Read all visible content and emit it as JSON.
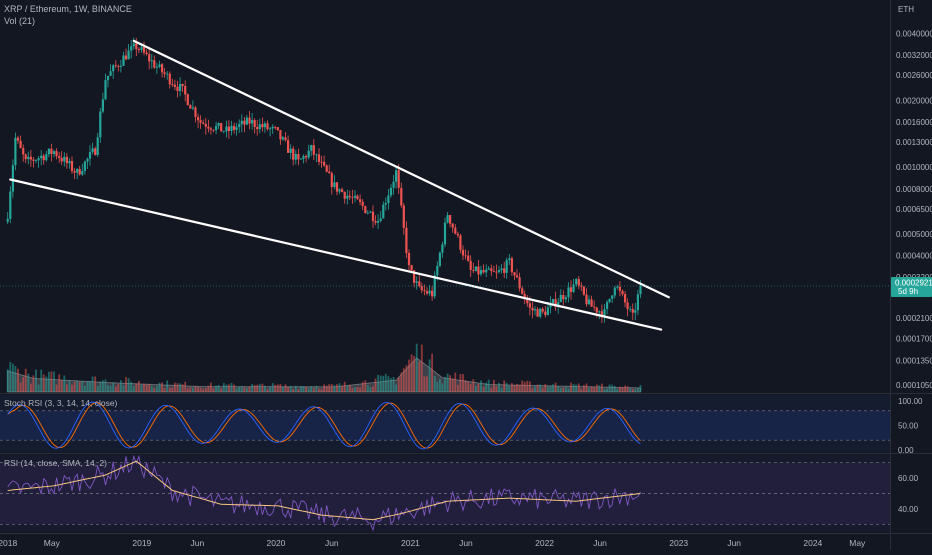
{
  "header": {
    "title": "XRP / Ethereum, 1W, BINANCE",
    "volume_label": "Vol (21)",
    "currency": "ETH"
  },
  "price_axis": {
    "ticks": [
      "0.0040000",
      "0.0032000",
      "0.0026000",
      "0.0020000",
      "0.0016000",
      "0.0013000",
      "0.0010000",
      "0.0008000",
      "0.0006500",
      "0.0005000",
      "0.0004000",
      "0.0003200",
      "0.0002100",
      "0.0001700",
      "0.0001350",
      "0.0001050"
    ],
    "current_price": "0.0002921",
    "countdown": "5d 9h"
  },
  "time_axis": {
    "ticks": [
      "2018",
      "May",
      "2019",
      "Jun",
      "2020",
      "Jun",
      "2021",
      "Jun",
      "2022",
      "Jun",
      "2023",
      "Jun",
      "2024",
      "May"
    ]
  },
  "stoch_rsi": {
    "label": "Stoch RSI (3, 3, 14, 14, close)",
    "ticks": [
      "100.00",
      "50.00",
      "0.00"
    ]
  },
  "rsi": {
    "label": "RSI (14, close, SMA, 14, 2)",
    "ticks": [
      "60.00",
      "40.00"
    ]
  },
  "colors": {
    "background": "#131722",
    "up": "#26a69a",
    "down": "#ef5350",
    "trendline": "#ffffff",
    "stoch_k": "#2962ff",
    "stoch_d": "#ff6d00",
    "rsi_line": "#7e57c2",
    "rsi_ma": "#f7c680",
    "price_label": "#26a69a"
  },
  "chart_data": {
    "type": "candlestick",
    "title": "XRP / Ethereum, 1W, BINANCE",
    "y_scale": "log",
    "ylim": [
      9.75e-05,
      0.0052
    ],
    "xlim": [
      "2017-12-11",
      "2024-07-29"
    ],
    "x_ticks": [
      "2018",
      "May",
      "2019",
      "Jun",
      "2020",
      "Jun",
      "2021",
      "Jun",
      "2022",
      "Jun",
      "2023",
      "Jun",
      "2024",
      "May"
    ],
    "grid": false,
    "current_price": 0.0002921,
    "trendlines": [
      {
        "name": "upper",
        "from": {
          "x": "2018-12-10",
          "y": 0.0037
        },
        "to": {
          "x": "2022-12-05",
          "y": 0.00026
        }
      },
      {
        "name": "lower",
        "from": {
          "x": "2018-01-08",
          "y": 0.00088
        },
        "to": {
          "x": "2022-11-14",
          "y": 0.000186
        }
      }
    ],
    "price_anchors": [
      {
        "x": "2018-01-01",
        "y": 0.00062
      },
      {
        "x": "2018-01-22",
        "y": 0.00135
      },
      {
        "x": "2018-02-19",
        "y": 0.00105
      },
      {
        "x": "2018-05-07",
        "y": 0.00118
      },
      {
        "x": "2018-07-09",
        "y": 0.00094
      },
      {
        "x": "2018-08-27",
        "y": 0.0012
      },
      {
        "x": "2018-09-24",
        "y": 0.0025
      },
      {
        "x": "2018-11-19",
        "y": 0.0032
      },
      {
        "x": "2018-12-17",
        "y": 0.0035
      },
      {
        "x": "2019-02-04",
        "y": 0.0029
      },
      {
        "x": "2019-04-22",
        "y": 0.0022
      },
      {
        "x": "2019-06-10",
        "y": 0.0016
      },
      {
        "x": "2019-08-19",
        "y": 0.00145
      },
      {
        "x": "2019-10-21",
        "y": 0.0016
      },
      {
        "x": "2019-12-30",
        "y": 0.00145
      },
      {
        "x": "2020-03-02",
        "y": 0.00105
      },
      {
        "x": "2020-04-06",
        "y": 0.0012
      },
      {
        "x": "2020-06-08",
        "y": 0.00082
      },
      {
        "x": "2020-08-17",
        "y": 0.00068
      },
      {
        "x": "2020-10-05",
        "y": 0.00058
      },
      {
        "x": "2020-11-23",
        "y": 0.00095
      },
      {
        "x": "2020-12-28",
        "y": 0.00035
      },
      {
        "x": "2021-01-25",
        "y": 0.00028
      },
      {
        "x": "2021-03-01",
        "y": 0.00027
      },
      {
        "x": "2021-04-12",
        "y": 0.00062
      },
      {
        "x": "2021-06-14",
        "y": 0.00034
      },
      {
        "x": "2021-08-23",
        "y": 0.00033
      },
      {
        "x": "2021-09-27",
        "y": 0.00037
      },
      {
        "x": "2021-11-22",
        "y": 0.00023
      },
      {
        "x": "2021-12-27",
        "y": 0.00022
      },
      {
        "x": "2022-02-14",
        "y": 0.00026
      },
      {
        "x": "2022-03-28",
        "y": 0.0003
      },
      {
        "x": "2022-05-02",
        "y": 0.00024
      },
      {
        "x": "2022-06-13",
        "y": 0.00022
      },
      {
        "x": "2022-07-11",
        "y": 0.0003
      },
      {
        "x": "2022-08-29",
        "y": 0.00021
      },
      {
        "x": "2022-09-19",
        "y": 0.0002921
      }
    ],
    "volume_envelope": [
      {
        "x": "2018-01-01",
        "v": 0.62
      },
      {
        "x": "2018-03-12",
        "v": 0.4
      },
      {
        "x": "2018-09-24",
        "v": 0.28
      },
      {
        "x": "2019-06-10",
        "v": 0.16
      },
      {
        "x": "2020-06-08",
        "v": 0.15
      },
      {
        "x": "2020-11-23",
        "v": 0.35
      },
      {
        "x": "2021-01-18",
        "v": 1.0
      },
      {
        "x": "2021-03-29",
        "v": 0.42
      },
      {
        "x": "2021-08-02",
        "v": 0.22
      },
      {
        "x": "2022-09-19",
        "v": 0.12
      }
    ],
    "stoch_rsi": {
      "ylim": [
        0,
        100
      ],
      "bands": [
        80,
        20
      ],
      "ticks": [
        100,
        50,
        0
      ]
    },
    "rsi": {
      "ylim": [
        25,
        75
      ],
      "bands": [
        70,
        50,
        30
      ],
      "ticks": [
        60,
        40
      ]
    },
    "rsi_anchors": [
      {
        "x": "2018-01-01",
        "v": 52
      },
      {
        "x": "2018-05-07",
        "v": 55
      },
      {
        "x": "2018-09-24",
        "v": 62
      },
      {
        "x": "2018-12-17",
        "v": 71
      },
      {
        "x": "2019-03-25",
        "v": 52
      },
      {
        "x": "2019-08-05",
        "v": 43
      },
      {
        "x": "2020-01-06",
        "v": 42
      },
      {
        "x": "2020-05-04",
        "v": 36
      },
      {
        "x": "2020-09-21",
        "v": 33
      },
      {
        "x": "2020-12-07",
        "v": 37
      },
      {
        "x": "2021-04-12",
        "v": 45
      },
      {
        "x": "2021-09-27",
        "v": 47
      },
      {
        "x": "2022-03-28",
        "v": 45
      },
      {
        "x": "2022-09-19",
        "v": 50
      }
    ]
  }
}
